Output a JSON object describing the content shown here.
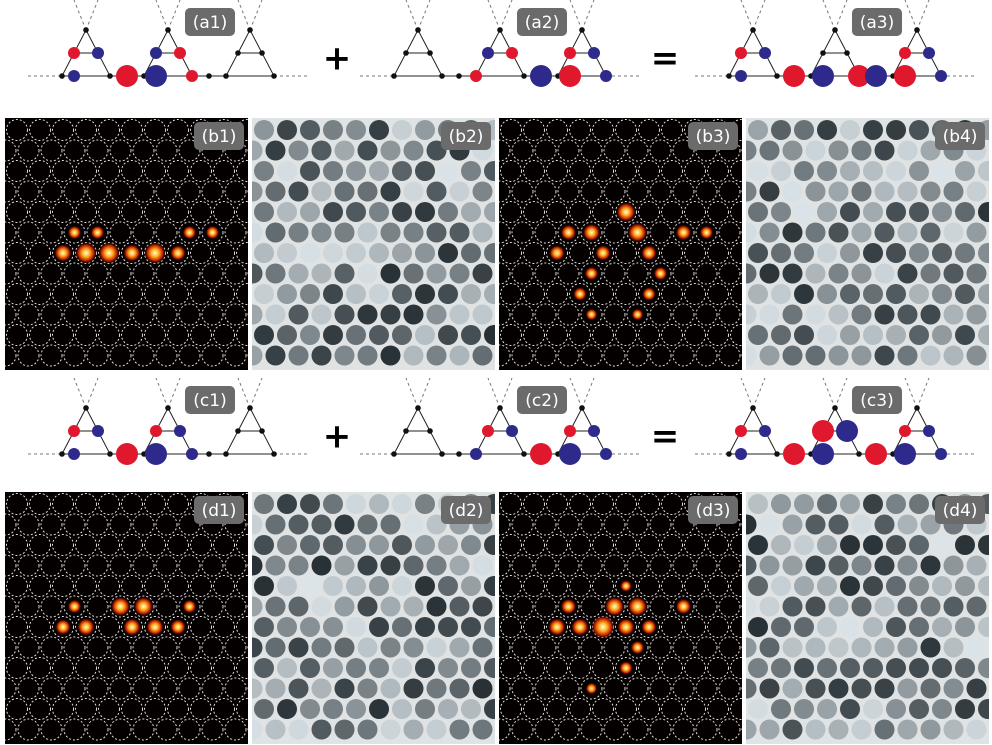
{
  "rows": [
    {
      "labels": [
        "(a1)",
        "(a2)",
        "(a3)"
      ],
      "operators": [
        "+",
        "="
      ]
    },
    {
      "labels": [
        "(b1)",
        "(b2)",
        "(b3)",
        "(b4)"
      ]
    },
    {
      "labels": [
        "(c1)",
        "(c2)",
        "(c3)"
      ],
      "operators": [
        "+",
        "="
      ]
    },
    {
      "labels": [
        "(d1)",
        "(d2)",
        "(d3)",
        "(d4)"
      ]
    }
  ]
}
